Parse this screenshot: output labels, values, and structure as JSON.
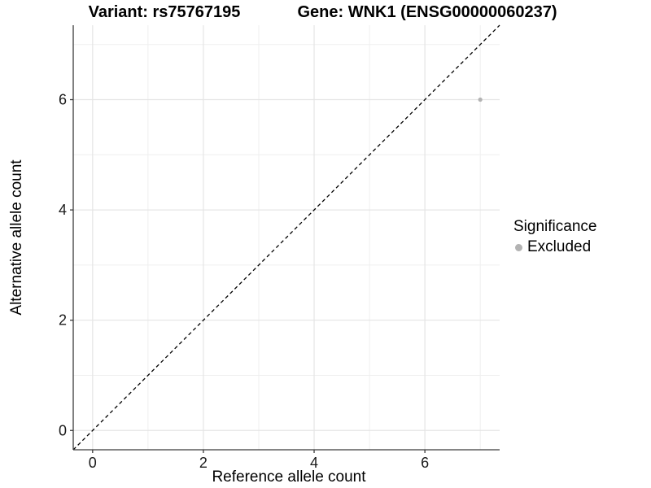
{
  "titles": {
    "variant": "Variant: rs75767195",
    "gene": "Gene: WNK1 (ENSG00000060237)"
  },
  "legend": {
    "title": "Significance",
    "items": [
      {
        "label": "Excluded",
        "color": "#b3b3b3",
        "shape": "circle"
      }
    ]
  },
  "chart_data": {
    "type": "scatter",
    "title": "Variant: rs75767195 | Gene: WNK1 (ENSG00000060237)",
    "xlabel": "Reference allele count",
    "ylabel": "Alternative allele count",
    "xlim": [
      -0.35,
      7.35
    ],
    "ylim": [
      -0.35,
      7.35
    ],
    "x_breaks": [
      0,
      2,
      4,
      6
    ],
    "y_breaks": [
      0,
      2,
      4,
      6
    ],
    "x_minor_breaks": [
      1,
      3,
      5,
      7
    ],
    "y_minor_breaks": [
      1,
      3,
      5,
      7
    ],
    "grid": true,
    "legend_position": "right",
    "series": [
      {
        "name": "Excluded",
        "color": "#b3b3b3",
        "points": [
          [
            7,
            6
          ]
        ]
      }
    ],
    "reference_line": {
      "kind": "identity",
      "equation": "y = x",
      "style": "dashed",
      "color": "#000000"
    }
  },
  "colors": {
    "background": "#ffffff",
    "grid_major": "#e5e5e5",
    "grid_minor": "#efefef",
    "axis_line": "#3c3c3c",
    "tick_text": "#1a1a1a",
    "point": "#b3b3b3"
  }
}
